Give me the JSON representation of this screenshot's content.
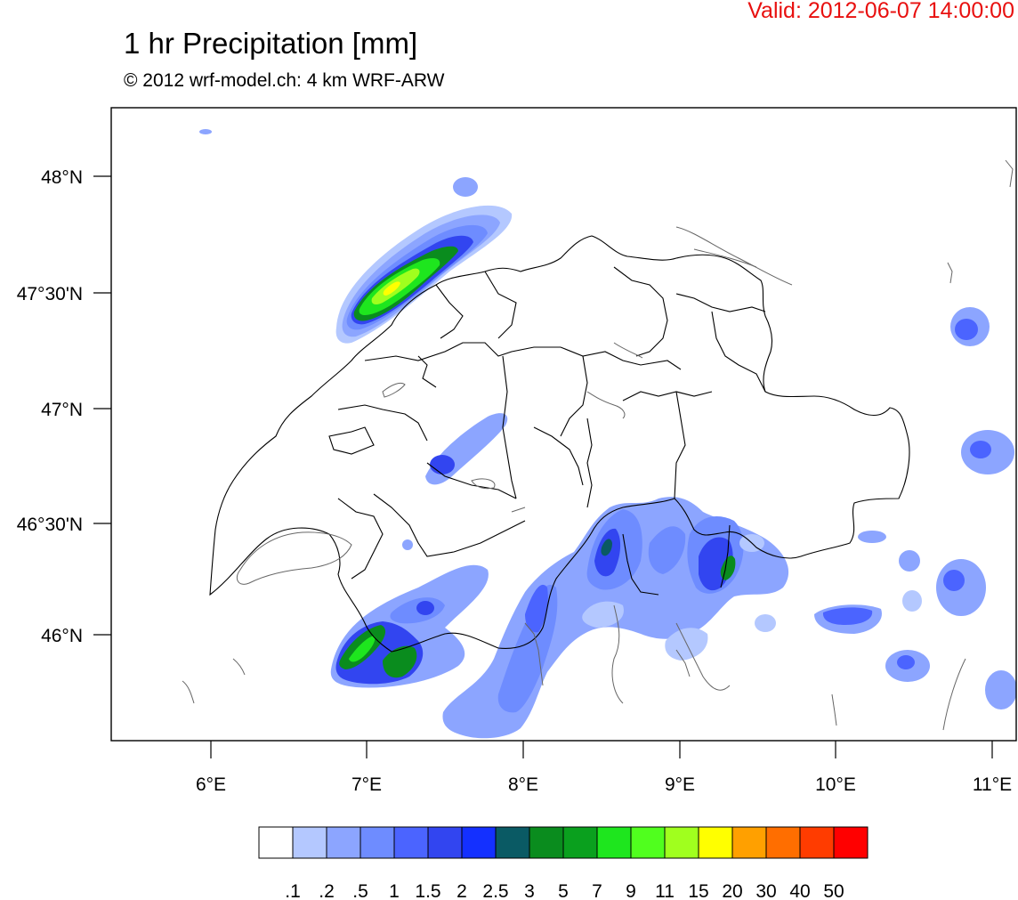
{
  "header": {
    "valid": "Valid: 2012-06-07 14:00:00",
    "title": "1 hr Precipitation [mm]",
    "subtitle": "© 2012 wrf-model.ch: 4 km WRF-ARW"
  },
  "axes": {
    "lat_labels": [
      "48°N",
      "47°30'N",
      "47°N",
      "46°30'N",
      "46°N"
    ],
    "lon_labels": [
      "6°E",
      "7°E",
      "8°E",
      "9°E",
      "10°E",
      "11°E"
    ]
  },
  "colorbar": {
    "labels": [
      ".1",
      ".2",
      ".5",
      "1",
      "1.5",
      "2",
      "2.5",
      "3",
      "5",
      "7",
      "9",
      "11",
      "15",
      "20",
      "30",
      "40",
      "50"
    ],
    "colors": [
      "#ffffff",
      "#b4c8ff",
      "#8ca5ff",
      "#6e8cff",
      "#4b64ff",
      "#3245f0",
      "#1430ff",
      "#0a5a64",
      "#0a8c1e",
      "#0aa01e",
      "#1ee61e",
      "#50ff1e",
      "#a0ff1e",
      "#ffff00",
      "#ffa000",
      "#ff6e00",
      "#ff3c00",
      "#ff0000"
    ]
  }
}
